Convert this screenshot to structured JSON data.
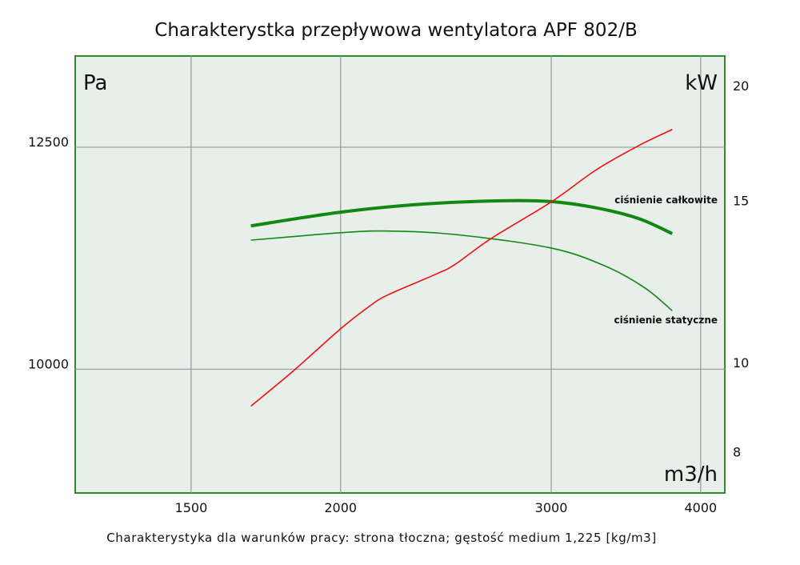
{
  "chart_data": {
    "type": "line",
    "title": "Charakterystka przepływowa wentylatora APF 802/B",
    "footnote": "Charakterystyka dla warunków pracy: strona tłoczna; gęstość medium 1,225 [kg/m3]",
    "xlabel": "m3/h",
    "ylabel_left": "Pa",
    "ylabel_right": "kW",
    "x_scale": "log",
    "y_left_scale": "log",
    "y_right_scale": "log",
    "xlim": [
      1200,
      4190
    ],
    "ylim_left": [
      8830,
      13700
    ],
    "ylim_right": [
      7.2,
      21.5
    ],
    "x_ticks": [
      1500,
      2000,
      3000,
      4000
    ],
    "y_left_ticks": [
      10000,
      12500
    ],
    "y_right_ticks": [
      8,
      10,
      15,
      20
    ],
    "grid": true,
    "background_color": "#e8eee9",
    "frame_color": "#2e8b2e",
    "series": [
      {
        "name": "ciśnienie całkowite",
        "axis": "left",
        "color": "#118811",
        "weight": "thick",
        "x": [
          1683,
          2000,
          2343,
          2728,
          3000,
          3274,
          3550,
          3787
        ],
        "y": [
          11550,
          11710,
          11805,
          11845,
          11835,
          11760,
          11635,
          11460
        ]
      },
      {
        "name": "ciśnienie statyczne",
        "axis": "left",
        "color": "#118811",
        "weight": "thin",
        "x": [
          1683,
          2000,
          2190,
          2493,
          3000,
          3338,
          3594,
          3787
        ],
        "y": [
          11385,
          11470,
          11490,
          11450,
          11295,
          11085,
          10850,
          10605
        ]
      },
      {
        "axis": "right",
        "color": "#ee1111",
        "weight": "thin",
        "x": [
          1683,
          1824,
          2000,
          2114,
          2190,
          2402,
          2493,
          2676,
          3000,
          3274,
          3550,
          3787
        ],
        "y": [
          8.95,
          9.76,
          10.86,
          11.49,
          11.82,
          12.45,
          12.76,
          13.63,
          14.92,
          16.18,
          17.18,
          17.89
        ]
      }
    ]
  }
}
